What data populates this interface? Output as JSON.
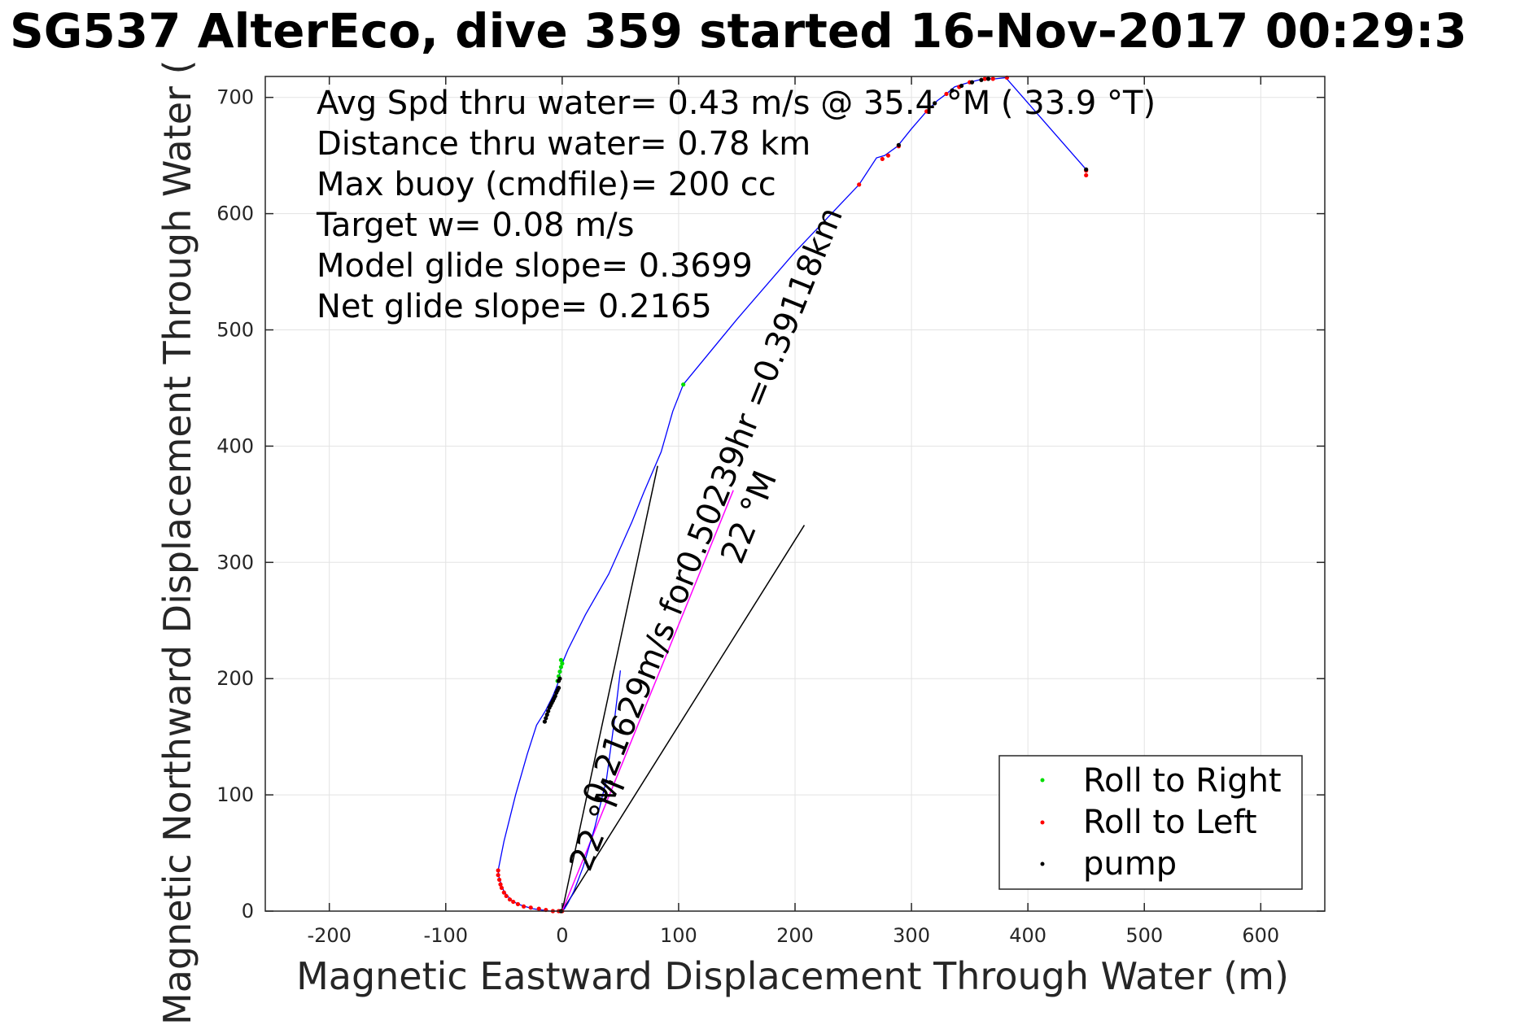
{
  "chart_data": {
    "type": "line",
    "title": "SG537 AlterEco, dive 359 started 16-Nov-2017 00:29:3",
    "xlabel": "Magnetic Eastward Displacement Through Water (m)",
    "ylabel": "Magnetic Northward Displacement Through Water (",
    "xlim": [
      -255,
      655
    ],
    "ylim": [
      0,
      718
    ],
    "xticks": [
      -200,
      -100,
      0,
      100,
      200,
      300,
      400,
      500,
      600
    ],
    "yticks": [
      0,
      100,
      200,
      300,
      400,
      500,
      600,
      700
    ],
    "xtick_labels": [
      "-200",
      "-100",
      "0",
      "100",
      "200",
      "300",
      "400",
      "500",
      "600"
    ],
    "ytick_labels": [
      "0",
      "100",
      "200",
      "300",
      "400",
      "500",
      "600",
      "700"
    ],
    "grid": true,
    "legend_position": "bottom-right",
    "annotations": [
      "Avg Spd thru water=  0.43 m/s @  35.4 °M ( 33.9 °T)",
      "Distance thru water=  0.78 km",
      "Max buoy (cmdfile)= 200 cc",
      "Target w= 0.08 m/s",
      "Model glide slope= 0.3699",
      "Net glide slope= 0.2165"
    ],
    "rotated_labels": [
      {
        "text": "0.21629m/s for0.50239hr =0.39118km",
        "at": [
          138,
          345
        ],
        "angle_deg": -68
      },
      {
        "text": "22 °M",
        "at": [
          138,
          348
        ],
        "angle_deg": -68
      },
      {
        "text": "22 °M",
        "at": [
          39,
          71
        ],
        "angle_deg": -68
      }
    ],
    "colors": {
      "track": "#0000ff",
      "roll_right": "#00dd00",
      "roll_left": "#ff0000",
      "pump": "#000000",
      "net_line": "#ff00ff",
      "grid": "#e3e3e3",
      "axes": "#262626"
    },
    "track": {
      "x": [
        -55,
        -54,
        -52,
        -50,
        -47,
        -43,
        -38,
        -32,
        -25,
        -18,
        -10,
        -3,
        0,
        0,
        2,
        5,
        10,
        18,
        28,
        38,
        45,
        50,
        52,
        58,
        64,
        70,
        80,
        90,
        104,
        150,
        200,
        255,
        270,
        277,
        288,
        300,
        313,
        322,
        330,
        337,
        343,
        350,
        358,
        364,
        372,
        381,
        450
      ],
      "y": [
        35,
        28,
        22,
        17,
        13,
        9,
        6,
        4,
        2,
        1,
        0,
        0,
        0,
        0,
        2,
        7,
        17,
        38,
        72,
        113,
        165,
        207,
        330,
        285,
        310,
        340,
        370,
        400,
        453,
        509,
        567,
        625,
        648,
        650,
        658,
        673,
        688,
        697,
        703,
        709,
        711,
        713,
        715,
        716,
        716,
        717,
        638
      ]
    },
    "outbound_track": {
      "x": [
        -55,
        -50,
        -45,
        -40,
        -30,
        -22,
        -17,
        -14,
        -12,
        -10,
        -8,
        -6,
        -4,
        -3,
        -2,
        0,
        5,
        20,
        40,
        60,
        70,
        85,
        95,
        104
      ],
      "y": [
        35,
        60,
        80,
        100,
        135,
        160,
        168,
        173,
        177,
        181,
        185,
        190,
        195,
        200,
        205,
        213,
        225,
        255,
        290,
        335,
        360,
        395,
        430,
        453
      ]
    },
    "series": [
      {
        "name": "Roll to Right",
        "type": "scatter",
        "x": [
          -4,
          -3,
          -2,
          -1,
          0,
          -1,
          104
        ],
        "y": [
          198,
          202,
          206,
          210,
          213,
          216,
          453
        ]
      },
      {
        "name": "Roll to Left",
        "type": "scatter",
        "x": [
          -55,
          -55,
          -54,
          -53,
          -52,
          -50,
          -48,
          -45,
          -42,
          -38,
          -33,
          -27,
          -20,
          -14,
          -8,
          -3,
          0,
          255,
          275,
          280,
          289,
          313,
          330,
          341,
          350,
          363,
          370,
          382,
          450,
          450
        ],
        "y": [
          35,
          31,
          27,
          23,
          20,
          16,
          13,
          10,
          8,
          6,
          4,
          3,
          2,
          1,
          0,
          0,
          0,
          625,
          647,
          650,
          658,
          688,
          703,
          709,
          713,
          716,
          716,
          717,
          637,
          633
        ]
      },
      {
        "name": "pump",
        "type": "scatter",
        "x": [
          -15,
          -14,
          -13,
          -12,
          -11,
          -10,
          -9,
          -8,
          -7,
          -6,
          -5,
          -4,
          -3,
          -3,
          -2,
          -1,
          289,
          320,
          335,
          343,
          352,
          360,
          366,
          450
        ],
        "y": [
          163,
          166,
          169,
          172,
          175,
          177,
          179,
          181,
          183,
          185,
          188,
          190,
          192,
          198,
          200,
          0,
          659,
          695,
          706,
          710,
          713,
          715,
          716,
          638
        ]
      }
    ],
    "reference_lines": [
      {
        "name": "model-line-1",
        "x": [
          0,
          82
        ],
        "y": [
          0,
          383
        ]
      },
      {
        "name": "model-line-2",
        "x": [
          0,
          208
        ],
        "y": [
          0,
          332
        ]
      },
      {
        "name": "net-line",
        "x": [
          0,
          147
        ],
        "y": [
          0,
          362
        ]
      }
    ]
  }
}
